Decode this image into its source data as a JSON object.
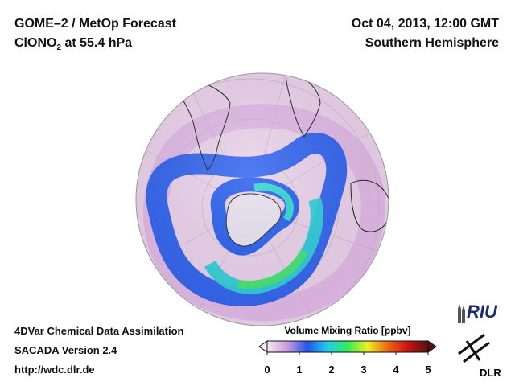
{
  "header": {
    "title_line1": "GOME–2 / MetOp Forecast",
    "species_prefix": "ClONO",
    "species_sub": "2",
    "species_suffix": " at 55.4 hPa",
    "date": "Oct 04, 2013, 12:00 GMT",
    "region": "Southern Hemisphere"
  },
  "footer": {
    "line1": "4DVar Chemical Data Assimilation",
    "line2": "SACADA Version 2.4",
    "line3": "http://wdc.dlr.de"
  },
  "colorbar": {
    "title": "Volume Mixing Ratio [ppbv]",
    "ticks": [
      "0",
      "1",
      "2",
      "3",
      "4",
      "5"
    ],
    "min": 0,
    "max": 5,
    "colors": [
      "#f2ecf2",
      "#cc99dd",
      "#2255ee",
      "#22ccee",
      "#33ee55",
      "#eeee22",
      "#ee6611",
      "#cc1111",
      "#551111"
    ]
  },
  "logos": {
    "riu": "RIU",
    "dlr": "DLR"
  },
  "map": {
    "projection": "orthographic, Southern Hemisphere",
    "background_color": "#ecd3ec",
    "land_outline_color": "#222222"
  }
}
